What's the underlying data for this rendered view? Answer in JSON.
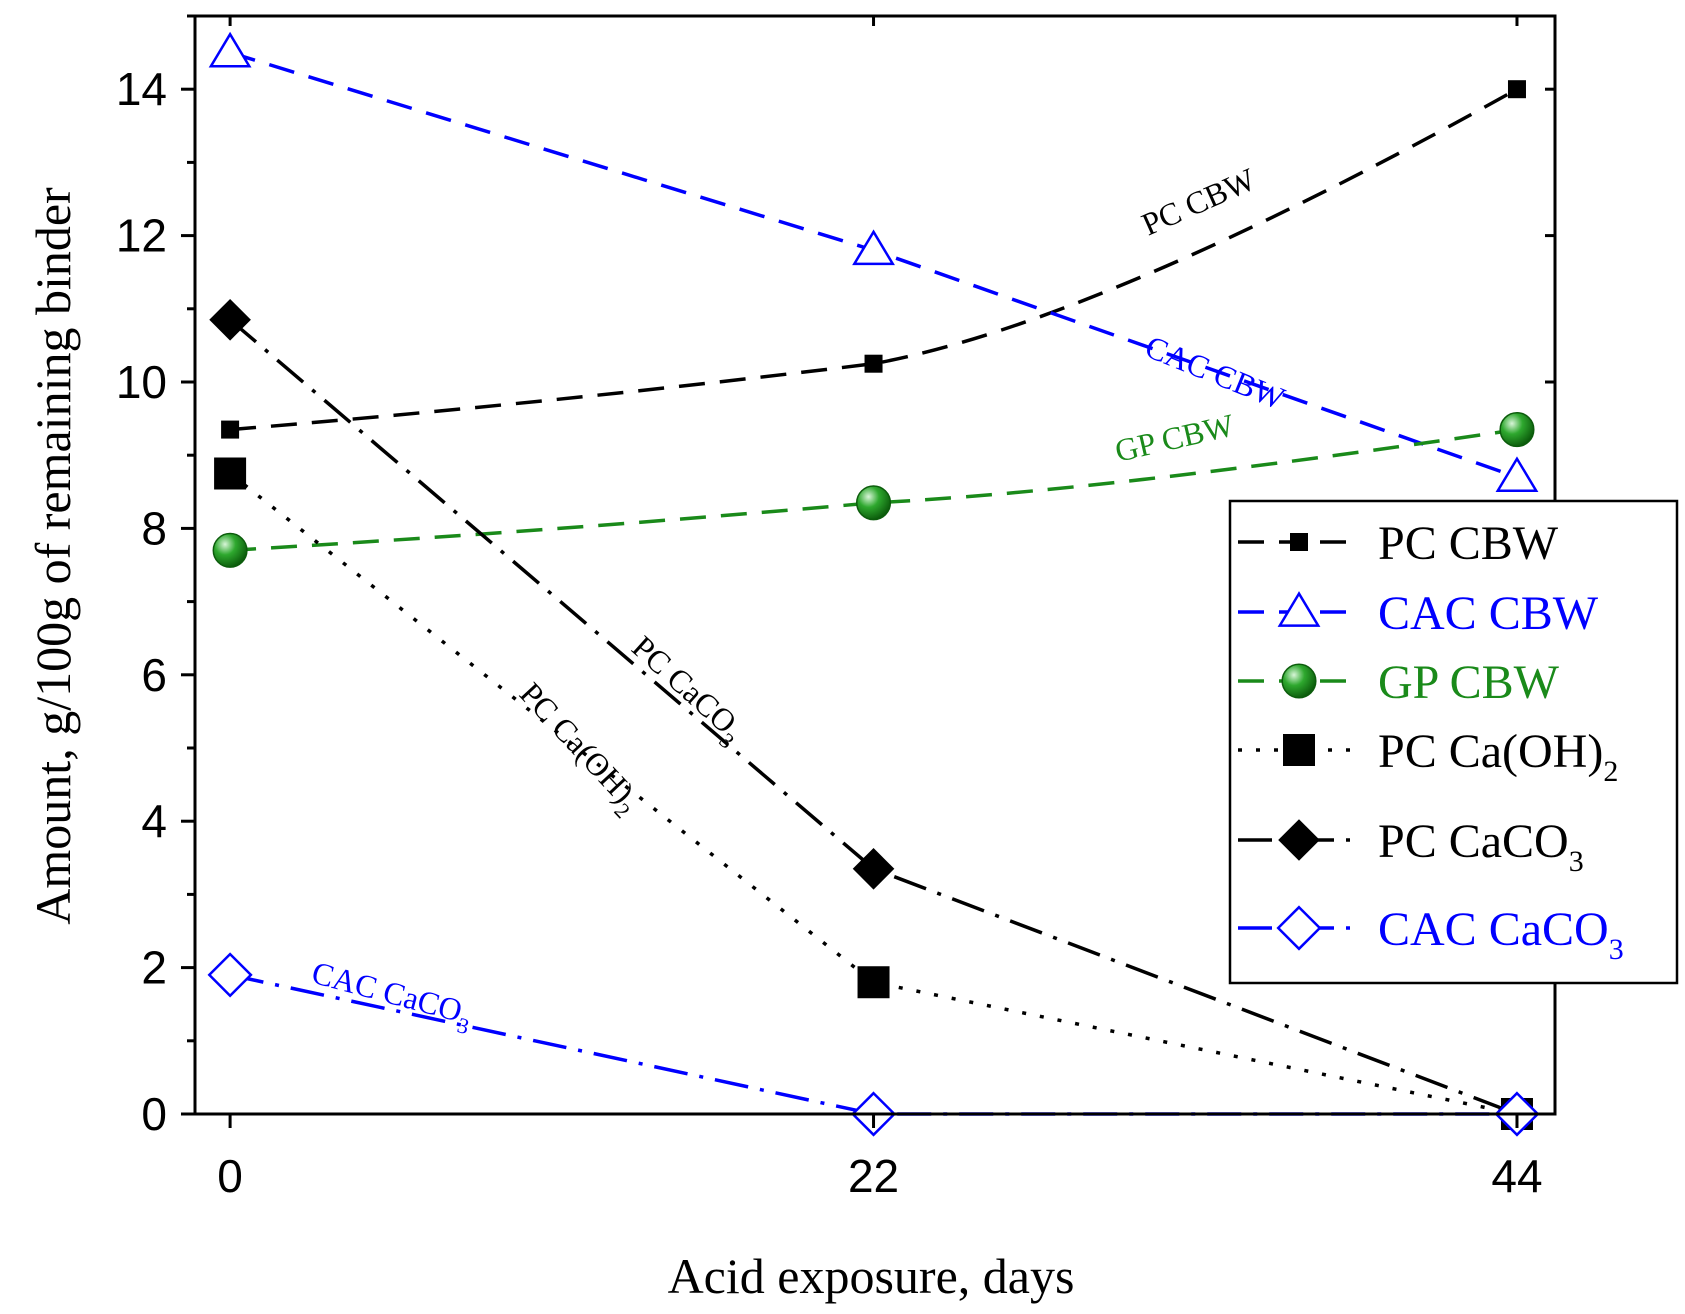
{
  "chart_data": {
    "type": "line",
    "title": "",
    "xlabel": "Acid exposure, days",
    "ylabel": "Amount, g/100g of remaining binder",
    "x": [
      0,
      22,
      44
    ],
    "x_tick_labels": [
      "0",
      "22",
      "44"
    ],
    "y_tick_labels": [
      "0",
      "2",
      "4",
      "6",
      "8",
      "10",
      "12",
      "14"
    ],
    "xlim": [
      -1.2,
      45.3
    ],
    "ylim": [
      0,
      15
    ],
    "legend_position": "right",
    "series": [
      {
        "name": "PC CBW",
        "legend_main": "PC CBW",
        "legend_sub": "",
        "values": [
          9.35,
          10.25,
          14.0
        ],
        "color": "#000000",
        "marker": "square-small",
        "style": "dash",
        "curve": "smooth"
      },
      {
        "name": "CAC CBW",
        "legend_main": "CAC CBW",
        "legend_sub": "",
        "values": [
          14.5,
          11.8,
          8.7
        ],
        "color": "#0000ff",
        "marker": "triangle-open",
        "style": "dash",
        "curve": "straight"
      },
      {
        "name": "GP CBW",
        "legend_main": "GP CBW",
        "legend_sub": "",
        "values": [
          7.7,
          8.35,
          9.35
        ],
        "color": "#1a8a1a",
        "marker": "sphere",
        "style": "dash",
        "curve": "smooth"
      },
      {
        "name": "PC Ca(OH)2",
        "legend_main": "PC Ca(OH)",
        "legend_sub": "2",
        "values": [
          8.75,
          1.8,
          0.0
        ],
        "color": "#000000",
        "marker": "square",
        "style": "dot",
        "curve": "straight"
      },
      {
        "name": "PC CaCO3",
        "legend_main": "PC CaCO",
        "legend_sub": "3",
        "values": [
          10.85,
          3.35,
          0.0
        ],
        "color": "#000000",
        "marker": "diamond",
        "style": "dashdot",
        "curve": "straight"
      },
      {
        "name": "CAC CaCO3",
        "legend_main": "CAC CaCO",
        "legend_sub": "3",
        "values": [
          1.9,
          0.0,
          0.0
        ],
        "color": "#0000ff",
        "marker": "diamond-open",
        "style": "dashdot",
        "curve": "straight"
      }
    ],
    "annotations": [
      {
        "series": "PC CBW",
        "main": "PC CBW",
        "sub": ""
      },
      {
        "series": "CAC CBW",
        "main": "CAC CBW",
        "sub": ""
      },
      {
        "series": "GP CBW",
        "main": "GP CBW",
        "sub": ""
      },
      {
        "series": "PC CaCO3",
        "main": "PC CaCO",
        "sub": "3"
      },
      {
        "series": "PC Ca(OH)2",
        "main": "PC Ca(OH)",
        "sub": "2"
      },
      {
        "series": "CAC CaCO3",
        "main": "CAC CaCO",
        "sub": "3"
      }
    ]
  }
}
